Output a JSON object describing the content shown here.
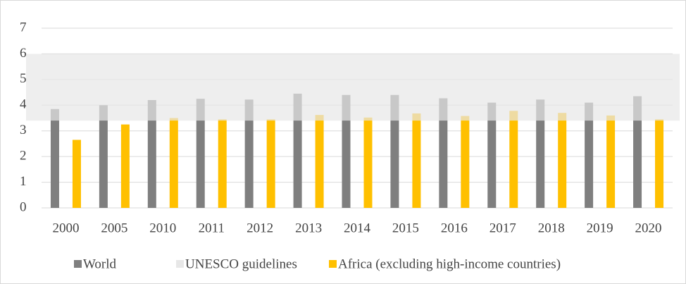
{
  "chart_data": {
    "type": "bar",
    "categories": [
      "2000",
      "2005",
      "2010",
      "2011",
      "2012",
      "2013",
      "2014",
      "2015",
      "2016",
      "2017",
      "2018",
      "2019",
      "2020"
    ],
    "series": [
      {
        "name": "World",
        "color": "#7f7f7f",
        "values": [
          3.85,
          4.0,
          4.2,
          4.25,
          4.22,
          4.45,
          4.4,
          4.4,
          4.27,
          4.1,
          4.22,
          4.1,
          4.35
        ]
      },
      {
        "name": "Africa (excluding high-income countries)",
        "color": "#ffc000",
        "values": [
          2.65,
          3.25,
          3.5,
          3.45,
          3.45,
          3.62,
          3.52,
          3.68,
          3.58,
          3.78,
          3.7,
          3.6,
          3.45
        ]
      }
    ],
    "band": {
      "name": "UNESCO guidelines",
      "color": "#e7e7e7",
      "range": [
        3.4,
        6
      ]
    },
    "ylim": [
      0,
      7
    ],
    "yticks": [
      0,
      1,
      2,
      3,
      4,
      5,
      6,
      7
    ],
    "grid": true
  }
}
